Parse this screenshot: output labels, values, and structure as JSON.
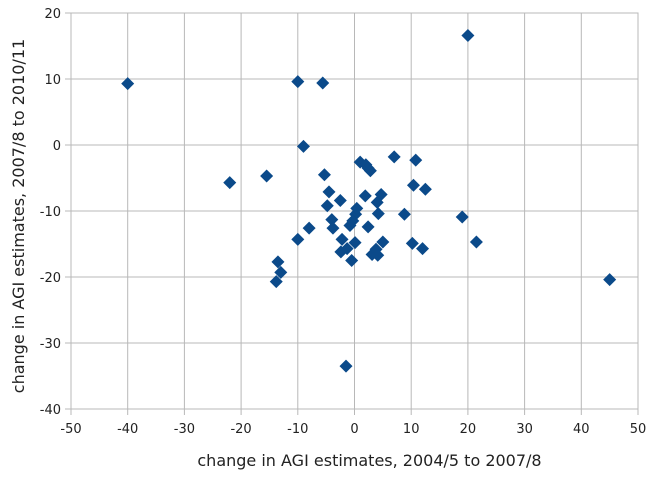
{
  "chart_data": {
    "type": "scatter",
    "xlabel": "change in AGI estimates, 2004/5 to 2007/8",
    "ylabel": "change in AGI estimates, 2007/8 to 2010/11",
    "xlim": [
      -50,
      50
    ],
    "ylim": [
      -40,
      20
    ],
    "xticks": [
      "-50",
      "-40",
      "-30",
      "-20",
      "-10",
      "0",
      "10",
      "20",
      "30",
      "40",
      "50"
    ],
    "yticks": [
      "-40",
      "-30",
      "-20",
      "-10",
      "0",
      "10",
      "20"
    ],
    "grid": true,
    "legend": "none",
    "marker": "diamond",
    "marker_color": "#0b4a8a",
    "series": [
      {
        "points": [
          [
            -40,
            9.3
          ],
          [
            -10,
            9.6
          ],
          [
            -5.6,
            9.4
          ],
          [
            20,
            16.6
          ],
          [
            -9,
            -0.2
          ],
          [
            -22,
            -5.7
          ],
          [
            -15.5,
            -4.7
          ],
          [
            -5.3,
            -4.5
          ],
          [
            -4.5,
            -7.1
          ],
          [
            -4.8,
            -9.2
          ],
          [
            -4,
            -11.3
          ],
          [
            -3.8,
            -12.6
          ],
          [
            -2.5,
            -8.4
          ],
          [
            -8,
            -12.6
          ],
          [
            -10,
            -14.3
          ],
          [
            -2.2,
            -14.3
          ],
          [
            -2.4,
            -16.2
          ],
          [
            -1.3,
            -15.7
          ],
          [
            -0.5,
            -17.5
          ],
          [
            0.1,
            -14.8
          ],
          [
            -0.8,
            -12.2
          ],
          [
            0.2,
            -10.5
          ],
          [
            -0.3,
            -11.5
          ],
          [
            0.4,
            -9.6
          ],
          [
            1,
            -2.6
          ],
          [
            2,
            -3
          ],
          [
            2.4,
            -3.5
          ],
          [
            2.8,
            -3.9
          ],
          [
            1.9,
            -7.7
          ],
          [
            2.4,
            -12.4
          ],
          [
            3.1,
            -16.6
          ],
          [
            3.8,
            -15.8
          ],
          [
            4.1,
            -16.7
          ],
          [
            4,
            -8.7
          ],
          [
            4.7,
            -7.5
          ],
          [
            4.2,
            -10.4
          ],
          [
            5,
            -14.7
          ],
          [
            7,
            -1.8
          ],
          [
            8.8,
            -10.5
          ],
          [
            10.2,
            -14.9
          ],
          [
            10.4,
            -6.1
          ],
          [
            10.8,
            -2.3
          ],
          [
            12,
            -15.7
          ],
          [
            12.5,
            -6.7
          ],
          [
            19,
            -10.9
          ],
          [
            21.5,
            -14.7
          ],
          [
            -13.5,
            -17.7
          ],
          [
            -13,
            -19.3
          ],
          [
            -13.8,
            -20.7
          ],
          [
            -1.5,
            -33.5
          ],
          [
            45,
            -20.4
          ]
        ]
      }
    ]
  }
}
